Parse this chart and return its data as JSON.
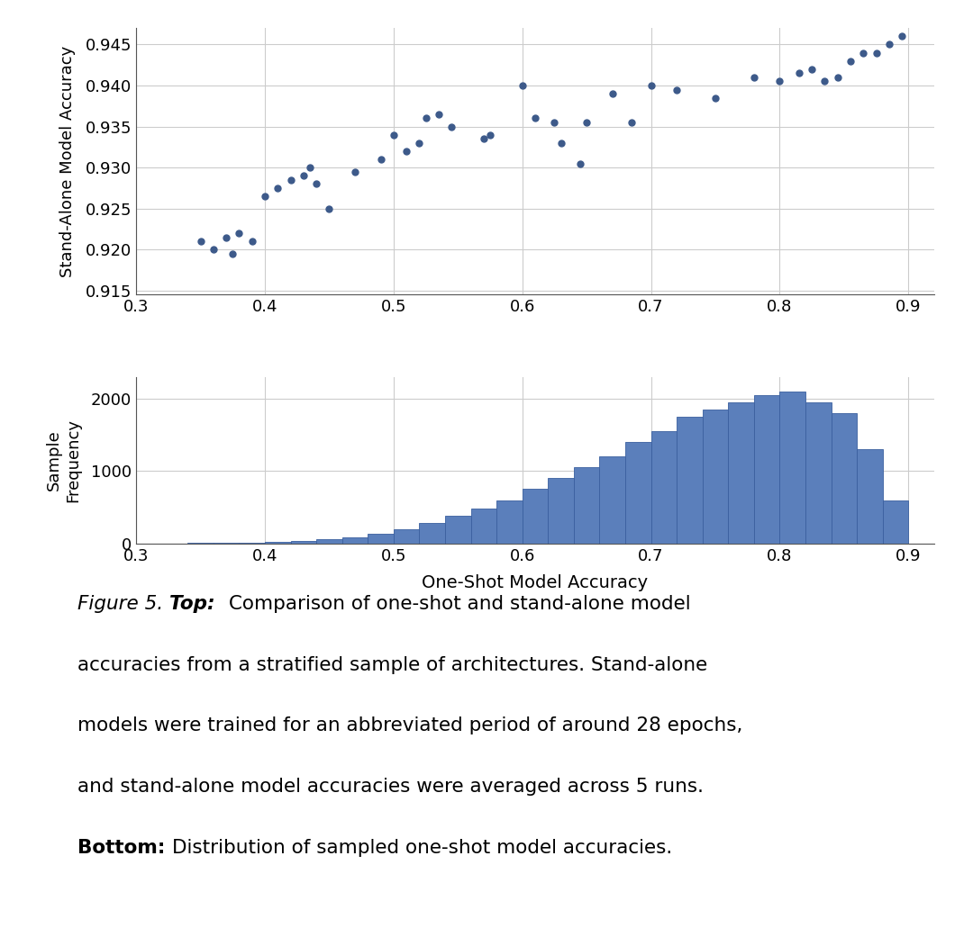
{
  "scatter_x": [
    0.35,
    0.36,
    0.37,
    0.375,
    0.38,
    0.39,
    0.4,
    0.41,
    0.42,
    0.43,
    0.435,
    0.44,
    0.45,
    0.47,
    0.49,
    0.5,
    0.51,
    0.52,
    0.525,
    0.535,
    0.545,
    0.57,
    0.575,
    0.6,
    0.61,
    0.625,
    0.63,
    0.645,
    0.65,
    0.67,
    0.685,
    0.7,
    0.72,
    0.75,
    0.78,
    0.8,
    0.815,
    0.825,
    0.835,
    0.845,
    0.855,
    0.865,
    0.875,
    0.885,
    0.895
  ],
  "scatter_y": [
    0.921,
    0.92,
    0.9215,
    0.9195,
    0.922,
    0.921,
    0.9265,
    0.9275,
    0.9285,
    0.929,
    0.93,
    0.928,
    0.925,
    0.9295,
    0.931,
    0.934,
    0.932,
    0.933,
    0.936,
    0.9365,
    0.935,
    0.9335,
    0.934,
    0.94,
    0.936,
    0.9355,
    0.933,
    0.9305,
    0.9355,
    0.939,
    0.9355,
    0.94,
    0.9395,
    0.9385,
    0.941,
    0.9405,
    0.9415,
    0.942,
    0.9405,
    0.941,
    0.943,
    0.944,
    0.944,
    0.945,
    0.946
  ],
  "scatter_color": "#3d5a8a",
  "scatter_marker_size": 25,
  "scatter_ylabel": "Stand-Alone Model Accuracy",
  "scatter_xlim": [
    0.3,
    0.92
  ],
  "scatter_ylim": [
    0.9145,
    0.947
  ],
  "scatter_yticks": [
    0.915,
    0.92,
    0.925,
    0.93,
    0.935,
    0.94,
    0.945
  ],
  "scatter_xticks": [
    0.3,
    0.4,
    0.5,
    0.6,
    0.7,
    0.8,
    0.9
  ],
  "hist_bin_edges": [
    0.3,
    0.32,
    0.34,
    0.36,
    0.38,
    0.4,
    0.42,
    0.44,
    0.46,
    0.48,
    0.5,
    0.52,
    0.54,
    0.56,
    0.58,
    0.6,
    0.62,
    0.64,
    0.66,
    0.68,
    0.7,
    0.72,
    0.74,
    0.76,
    0.78,
    0.8,
    0.82,
    0.84,
    0.86,
    0.88,
    0.9
  ],
  "hist_values": [
    2,
    3,
    5,
    8,
    12,
    20,
    35,
    55,
    85,
    130,
    200,
    280,
    380,
    480,
    600,
    750,
    900,
    1050,
    1200,
    1400,
    1550,
    1750,
    1850,
    1950,
    2050,
    2100,
    1950,
    1800,
    1300,
    600
  ],
  "hist_color": "#5b7fbb",
  "hist_edgecolor": "#3a5f9f",
  "hist_ylabel": "Sample\nFrequency",
  "hist_xlabel": "One-Shot Model Accuracy",
  "hist_xlim": [
    0.3,
    0.92
  ],
  "hist_ylim": [
    0,
    2300
  ],
  "hist_yticks": [
    0,
    1000,
    2000
  ],
  "hist_xticks": [
    0.3,
    0.4,
    0.5,
    0.6,
    0.7,
    0.8,
    0.9
  ],
  "background_color": "#ffffff",
  "grid_color": "#cccccc",
  "fig_width": 10.8,
  "fig_height": 10.41
}
